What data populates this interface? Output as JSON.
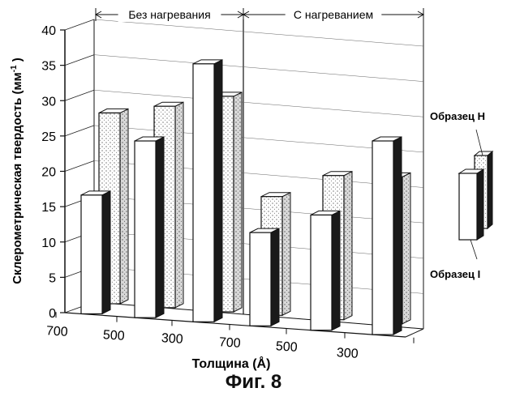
{
  "chart_data": {
    "type": "bar",
    "ylabel": "Склерометрическая твердость (мм",
    "ylabel_sup": "-1",
    "ylabel_end": ")",
    "xlabel": "Толщина (Å)",
    "ylim": [
      0,
      40
    ],
    "yticks": [
      "0",
      "5",
      "10",
      "15",
      "20",
      "25",
      "30",
      "35",
      "40"
    ],
    "groups": [
      {
        "label": "Без нагревания",
        "categories": [
          "700",
          "500",
          "300"
        ]
      },
      {
        "label": "С нагреванием",
        "categories": [
          "700",
          "500",
          "300"
        ]
      }
    ],
    "xtick_labels": [
      "700",
      "500",
      "300",
      "700",
      "500",
      "300"
    ],
    "series": [
      {
        "name": "Образец I",
        "style": "plain",
        "values": [
          16.8,
          25.0,
          36.5,
          13.2,
          16.3,
          27.4
        ]
      },
      {
        "name": "Образец H",
        "style": "dotted",
        "values": [
          27.0,
          28.5,
          30.5,
          16.8,
          20.4,
          20.8
        ]
      }
    ],
    "grid": true,
    "legend_position": "right"
  },
  "caption": "Фиг. 8"
}
